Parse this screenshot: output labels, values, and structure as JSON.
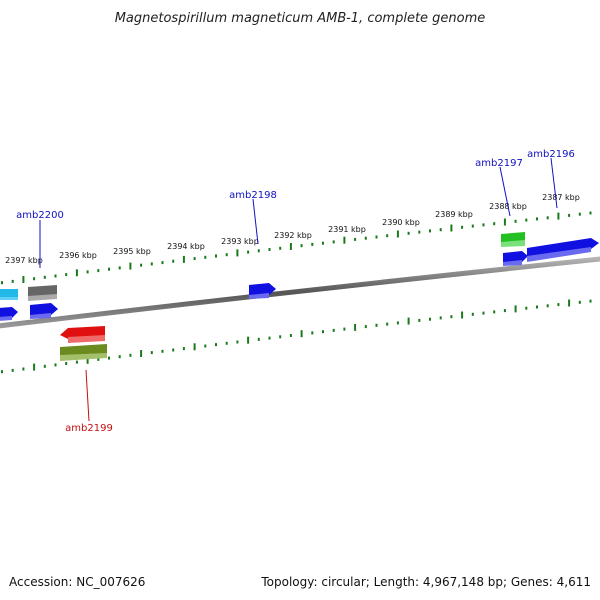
{
  "title": "Magnetospirillum magneticum AMB-1, complete genome",
  "footer": {
    "accession": "Accession: NC_007626",
    "topology": "Topology: circular; Length: 4,967,148 bp; Genes: 4,611"
  },
  "colors": {
    "backbone": "#7a7a7a",
    "ruler_ticks": "#1a7a1a",
    "gene_label_forward": "#1010c0",
    "gene_label_reverse": "#c01010"
  },
  "ruler": {
    "ticks": [
      "2397 kbp",
      "2396 kbp",
      "2395 kbp",
      "2394 kbp",
      "2393 kbp",
      "2392 kbp",
      "2391 kbp",
      "2390 kbp",
      "2389 kbp",
      "2388 kbp",
      "2387 kbp"
    ]
  },
  "gene_labels": [
    {
      "name": "amb2200",
      "strand": "forward"
    },
    {
      "name": "amb2198",
      "strand": "forward"
    },
    {
      "name": "amb2197",
      "strand": "forward"
    },
    {
      "name": "amb2196",
      "strand": "forward"
    },
    {
      "name": "amb2199",
      "strand": "reverse"
    }
  ],
  "features": [
    {
      "name": "feature-cyan",
      "color": "#22b8e8"
    },
    {
      "name": "feature-gray",
      "color": "#666666"
    },
    {
      "name": "feature-blue-left-edge",
      "color": "#1010e0"
    },
    {
      "name": "feature-blue-amb2200",
      "color": "#1010e0"
    },
    {
      "name": "feature-blue-amb2198",
      "color": "#1010e0"
    },
    {
      "name": "feature-green-amb2197",
      "color": "#22c022"
    },
    {
      "name": "feature-blue-amb2197",
      "color": "#1010e0"
    },
    {
      "name": "feature-blue-amb2196",
      "color": "#1010e0"
    },
    {
      "name": "feature-red-amb2199",
      "color": "#e01010"
    },
    {
      "name": "feature-olive-amb2199",
      "color": "#6b8a1f"
    }
  ]
}
